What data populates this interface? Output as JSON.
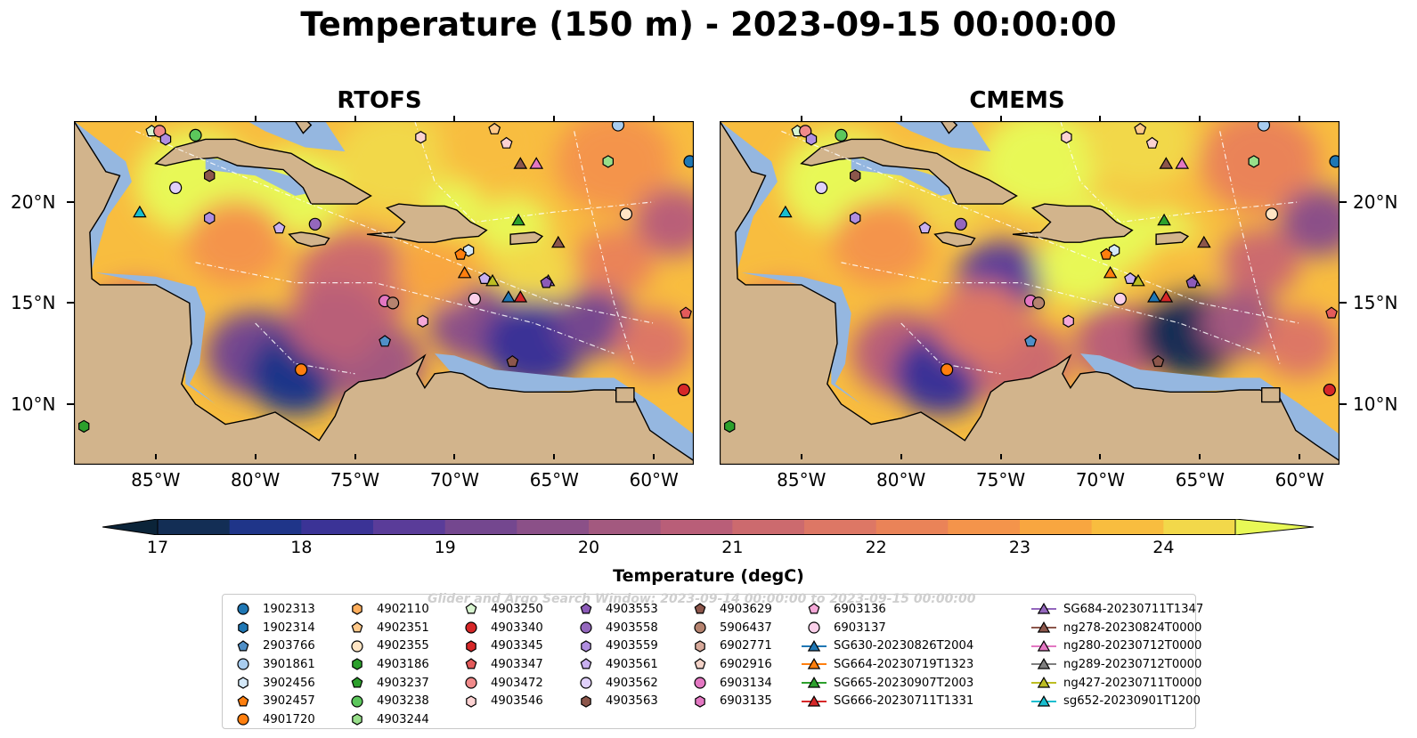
{
  "title": "Temperature (150 m) - 2023-09-15 00:00:00",
  "panels": [
    {
      "title": "RTOFS",
      "id": "rtofs"
    },
    {
      "title": "CMEMS",
      "id": "cmems"
    }
  ],
  "axes": {
    "x_ticks": [
      "85°W",
      "80°W",
      "75°W",
      "70°W",
      "65°W",
      "60°W"
    ],
    "y_ticks": [
      "20°N",
      "15°N",
      "10°N"
    ]
  },
  "colorbar": {
    "title": "Temperature (degC)",
    "ticks": [
      "17",
      "18",
      "19",
      "20",
      "21",
      "22",
      "23",
      "24"
    ],
    "colors": [
      "#0b2439",
      "#132e55",
      "#1f3589",
      "#3b3396",
      "#5a3c99",
      "#74478f",
      "#8b5088",
      "#a3597f",
      "#b95e78",
      "#cc6a6e",
      "#dd7765",
      "#ea8358",
      "#f4944b",
      "#f8a640",
      "#f8bd3f",
      "#f2d84a",
      "#e8f856"
    ]
  },
  "map_colors": {
    "ocean_deep": "#e9b94a",
    "land": "#d2b48c",
    "shelf": "#95b7e0",
    "pacific": "#0b2439"
  },
  "watermark": "Glider and Argo Search Window: 2023-09-14 00:00:00 to 2023-09-15 00:00:00",
  "legend": {
    "columns": [
      [
        {
          "label": "1902313",
          "marker": "circle",
          "color": "#1f77b4"
        },
        {
          "label": "1902314",
          "marker": "hexagon",
          "color": "#1f77b4"
        },
        {
          "label": "2903766",
          "marker": "pentagon",
          "color": "#4f8fc7"
        },
        {
          "label": "3901861",
          "marker": "circle",
          "color": "#a9cdef"
        },
        {
          "label": "3902456",
          "marker": "hexagon",
          "color": "#d4e8f8"
        },
        {
          "label": "3902457",
          "marker": "pentagon",
          "color": "#ff7f0e"
        },
        {
          "label": "4901720",
          "marker": "circle",
          "color": "#ff7f0e"
        }
      ],
      [
        {
          "label": "4902110",
          "marker": "hexagon",
          "color": "#ffae5c"
        },
        {
          "label": "4902351",
          "marker": "pentagon",
          "color": "#ffc98a"
        },
        {
          "label": "4902355",
          "marker": "circle",
          "color": "#ffe5c4"
        },
        {
          "label": "4903186",
          "marker": "hexagon",
          "color": "#2ca02c"
        },
        {
          "label": "4903237",
          "marker": "pentagon",
          "color": "#2ca02c"
        },
        {
          "label": "4903238",
          "marker": "circle",
          "color": "#5cc75c"
        },
        {
          "label": "4903244",
          "marker": "hexagon",
          "color": "#98df8a"
        }
      ],
      [
        {
          "label": "4903250",
          "marker": "pentagon",
          "color": "#d8f5d0"
        },
        {
          "label": "4903340",
          "marker": "circle",
          "color": "#d62728"
        },
        {
          "label": "4903345",
          "marker": "hexagon",
          "color": "#d62728"
        },
        {
          "label": "4903347",
          "marker": "pentagon",
          "color": "#e35b5b"
        },
        {
          "label": "4903472",
          "marker": "circle",
          "color": "#f08a8a"
        },
        {
          "label": "4903546",
          "marker": "hexagon",
          "color": "#fcd2d2"
        }
      ],
      [
        {
          "label": "4903553",
          "marker": "pentagon",
          "color": "#8c5bb8"
        },
        {
          "label": "4903558",
          "marker": "circle",
          "color": "#9467bd"
        },
        {
          "label": "4903559",
          "marker": "hexagon",
          "color": "#b08ee0"
        },
        {
          "label": "4903561",
          "marker": "pentagon",
          "color": "#c9b0f0"
        },
        {
          "label": "4903562",
          "marker": "circle",
          "color": "#e0d0fb"
        },
        {
          "label": "4903563",
          "marker": "hexagon",
          "color": "#8c564b"
        }
      ],
      [
        {
          "label": "4903629",
          "marker": "pentagon",
          "color": "#8c564b"
        },
        {
          "label": "5906437",
          "marker": "circle",
          "color": "#b5836f"
        },
        {
          "label": "6902771",
          "marker": "hexagon",
          "color": "#d7a99a"
        },
        {
          "label": "6902916",
          "marker": "pentagon",
          "color": "#f3d3c8"
        },
        {
          "label": "6903134",
          "marker": "circle",
          "color": "#e377c2"
        },
        {
          "label": "6903135",
          "marker": "hexagon",
          "color": "#e377c2"
        }
      ],
      [
        {
          "label": "6903136",
          "marker": "pentagon",
          "color": "#f5a8d8"
        },
        {
          "label": "6903137",
          "marker": "circle",
          "color": "#fbd0ea"
        },
        {
          "label": "SG630-20230826T2004",
          "marker": "triangle-line",
          "color": "#1f77b4"
        },
        {
          "label": "SG664-20230719T1323",
          "marker": "triangle-line",
          "color": "#ff7f0e"
        },
        {
          "label": "SG665-20230907T2003",
          "marker": "triangle-line",
          "color": "#2ca02c"
        },
        {
          "label": "SG666-20230711T1331",
          "marker": "triangle-line",
          "color": "#d62728"
        }
      ],
      [
        {
          "label": "SG684-20230711T1347",
          "marker": "triangle-line",
          "color": "#9467bd"
        },
        {
          "label": "ng278-20230824T0000",
          "marker": "triangle-line",
          "color": "#8c564b"
        },
        {
          "label": "ng280-20230712T0000",
          "marker": "triangle-line",
          "color": "#e377c2"
        },
        {
          "label": "ng289-20230712T0000",
          "marker": "triangle-line",
          "color": "#7f7f7f"
        },
        {
          "label": "ng427-20230711T0000",
          "marker": "triangle-line",
          "color": "#bcbd22"
        },
        {
          "label": "sg652-20230901T1200",
          "marker": "triangle-line",
          "color": "#17becf"
        }
      ]
    ]
  },
  "markers_on_map": [
    {
      "lon": -85.2,
      "lat": 23.5,
      "marker": "pentagon",
      "color": "#d8f5d0"
    },
    {
      "lon": -84.8,
      "lat": 23.5,
      "marker": "circle",
      "color": "#f08a8a"
    },
    {
      "lon": -84.5,
      "lat": 23.1,
      "marker": "hexagon",
      "color": "#b08ee0"
    },
    {
      "lon": -83.0,
      "lat": 23.3,
      "marker": "circle",
      "color": "#5cc75c"
    },
    {
      "lon": -82.3,
      "lat": 21.3,
      "marker": "hexagon",
      "color": "#8c564b"
    },
    {
      "lon": -84.0,
      "lat": 20.7,
      "marker": "circle",
      "color": "#e0d0fb"
    },
    {
      "lon": -85.8,
      "lat": 19.5,
      "marker": "triangle",
      "color": "#17becf"
    },
    {
      "lon": -82.3,
      "lat": 19.2,
      "marker": "hexagon",
      "color": "#b08ee0"
    },
    {
      "lon": -78.8,
      "lat": 18.7,
      "marker": "pentagon",
      "color": "#c9b0f0"
    },
    {
      "lon": -77.0,
      "lat": 18.9,
      "marker": "circle",
      "color": "#9467bd"
    },
    {
      "lon": -71.7,
      "lat": 23.2,
      "marker": "hexagon",
      "color": "#fcd2d2"
    },
    {
      "lon": -68.0,
      "lat": 23.6,
      "marker": "pentagon",
      "color": "#ffc98a"
    },
    {
      "lon": -67.4,
      "lat": 22.9,
      "marker": "pentagon",
      "color": "#fcd2d2"
    },
    {
      "lon": -66.7,
      "lat": 21.9,
      "marker": "triangle",
      "color": "#8c564b"
    },
    {
      "lon": -65.9,
      "lat": 21.9,
      "marker": "triangle",
      "color": "#e377c2"
    },
    {
      "lon": -61.8,
      "lat": 23.8,
      "marker": "circle",
      "color": "#a9cdef"
    },
    {
      "lon": -62.3,
      "lat": 22.0,
      "marker": "hexagon",
      "color": "#98df8a"
    },
    {
      "lon": -58.2,
      "lat": 22.0,
      "marker": "circle",
      "color": "#1f77b4"
    },
    {
      "lon": -61.4,
      "lat": 19.4,
      "marker": "circle",
      "color": "#ffe5c4"
    },
    {
      "lon": -66.8,
      "lat": 19.1,
      "marker": "triangle",
      "color": "#2ca02c"
    },
    {
      "lon": -64.8,
      "lat": 18.0,
      "marker": "triangle",
      "color": "#8c564b"
    },
    {
      "lon": -69.3,
      "lat": 17.6,
      "marker": "hexagon",
      "color": "#d4e8f8"
    },
    {
      "lon": -69.7,
      "lat": 17.4,
      "marker": "pentagon",
      "color": "#ff7f0e"
    },
    {
      "lon": -69.5,
      "lat": 16.5,
      "marker": "triangle",
      "color": "#ff7f0e"
    },
    {
      "lon": -68.5,
      "lat": 16.2,
      "marker": "pentagon",
      "color": "#c9b0f0"
    },
    {
      "lon": -68.1,
      "lat": 16.1,
      "marker": "triangle",
      "color": "#bcbd22"
    },
    {
      "lon": -67.3,
      "lat": 15.3,
      "marker": "triangle",
      "color": "#1f77b4"
    },
    {
      "lon": -66.7,
      "lat": 15.3,
      "marker": "triangle",
      "color": "#d62728"
    },
    {
      "lon": -65.3,
      "lat": 16.1,
      "marker": "triangle",
      "color": "#9467bd"
    },
    {
      "lon": -65.4,
      "lat": 16.0,
      "marker": "pentagon",
      "color": "#8c5bb8"
    },
    {
      "lon": -69.0,
      "lat": 15.2,
      "marker": "circle",
      "color": "#fbd0ea"
    },
    {
      "lon": -73.5,
      "lat": 15.1,
      "marker": "circle",
      "color": "#e377c2"
    },
    {
      "lon": -73.1,
      "lat": 15.0,
      "marker": "circle",
      "color": "#b5836f"
    },
    {
      "lon": -71.6,
      "lat": 14.1,
      "marker": "hexagon",
      "color": "#f5a8d8"
    },
    {
      "lon": -73.5,
      "lat": 13.1,
      "marker": "pentagon",
      "color": "#4f8fc7"
    },
    {
      "lon": -67.1,
      "lat": 12.1,
      "marker": "pentagon",
      "color": "#8c564b"
    },
    {
      "lon": -77.7,
      "lat": 11.7,
      "marker": "circle",
      "color": "#ff7f0e"
    },
    {
      "lon": -58.4,
      "lat": 14.5,
      "marker": "pentagon",
      "color": "#e35b5b"
    },
    {
      "lon": -58.5,
      "lat": 10.7,
      "marker": "circle",
      "color": "#d62728"
    },
    {
      "lon": -88.6,
      "lat": 8.9,
      "marker": "hexagon",
      "color": "#2ca02c"
    }
  ]
}
